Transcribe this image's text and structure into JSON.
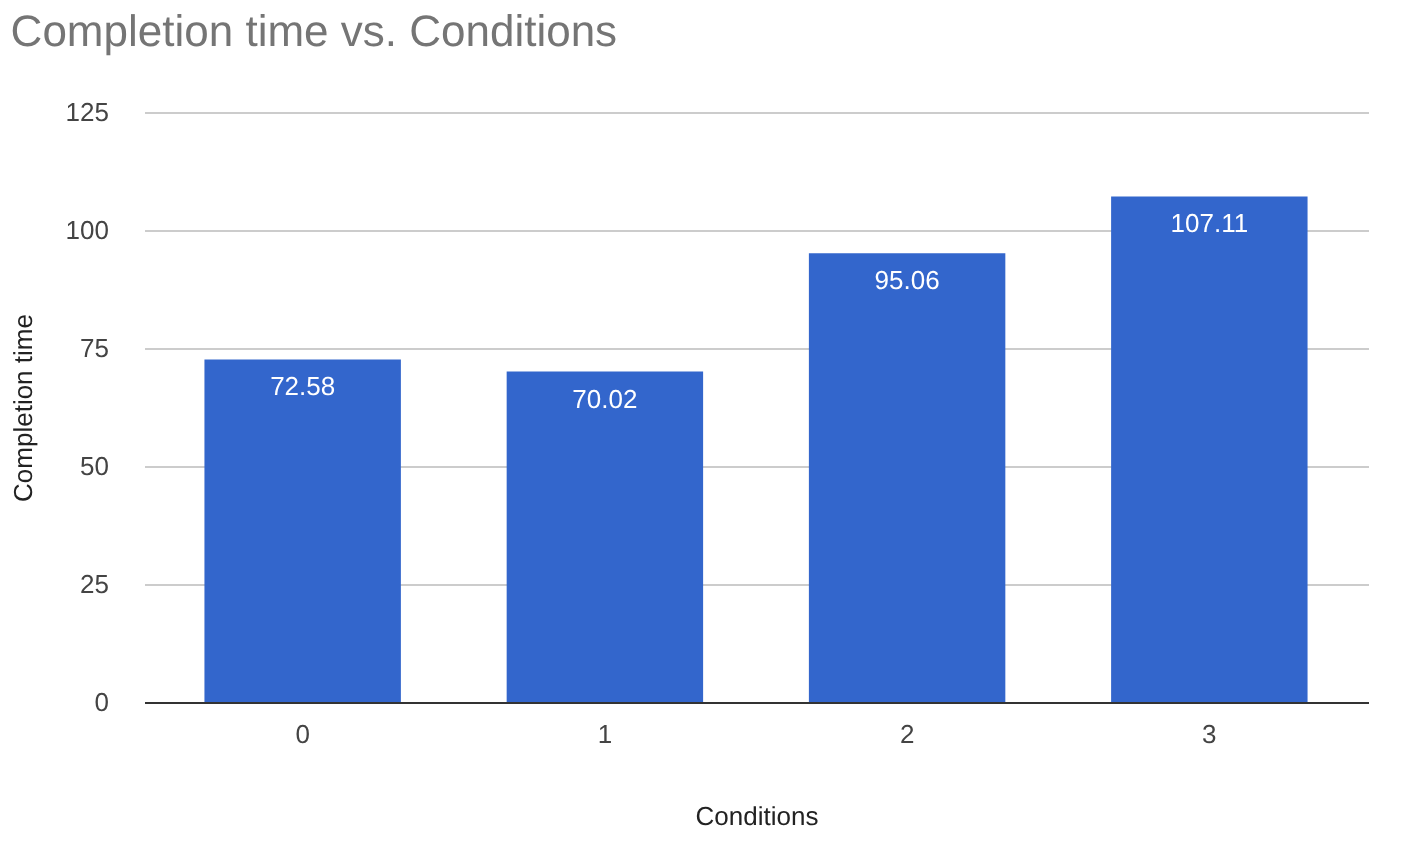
{
  "chart_data": {
    "type": "bar",
    "title": "Completion time vs. Conditions",
    "xlabel": "Conditions",
    "ylabel": "Completion time",
    "categories": [
      "0",
      "1",
      "2",
      "3"
    ],
    "values": [
      72.58,
      70.02,
      95.06,
      107.11
    ],
    "color": "#3366cc",
    "ylim": [
      0,
      125
    ],
    "yticks": [
      0,
      25,
      50,
      75,
      100,
      125
    ],
    "grid": "y",
    "data_labels": true
  }
}
